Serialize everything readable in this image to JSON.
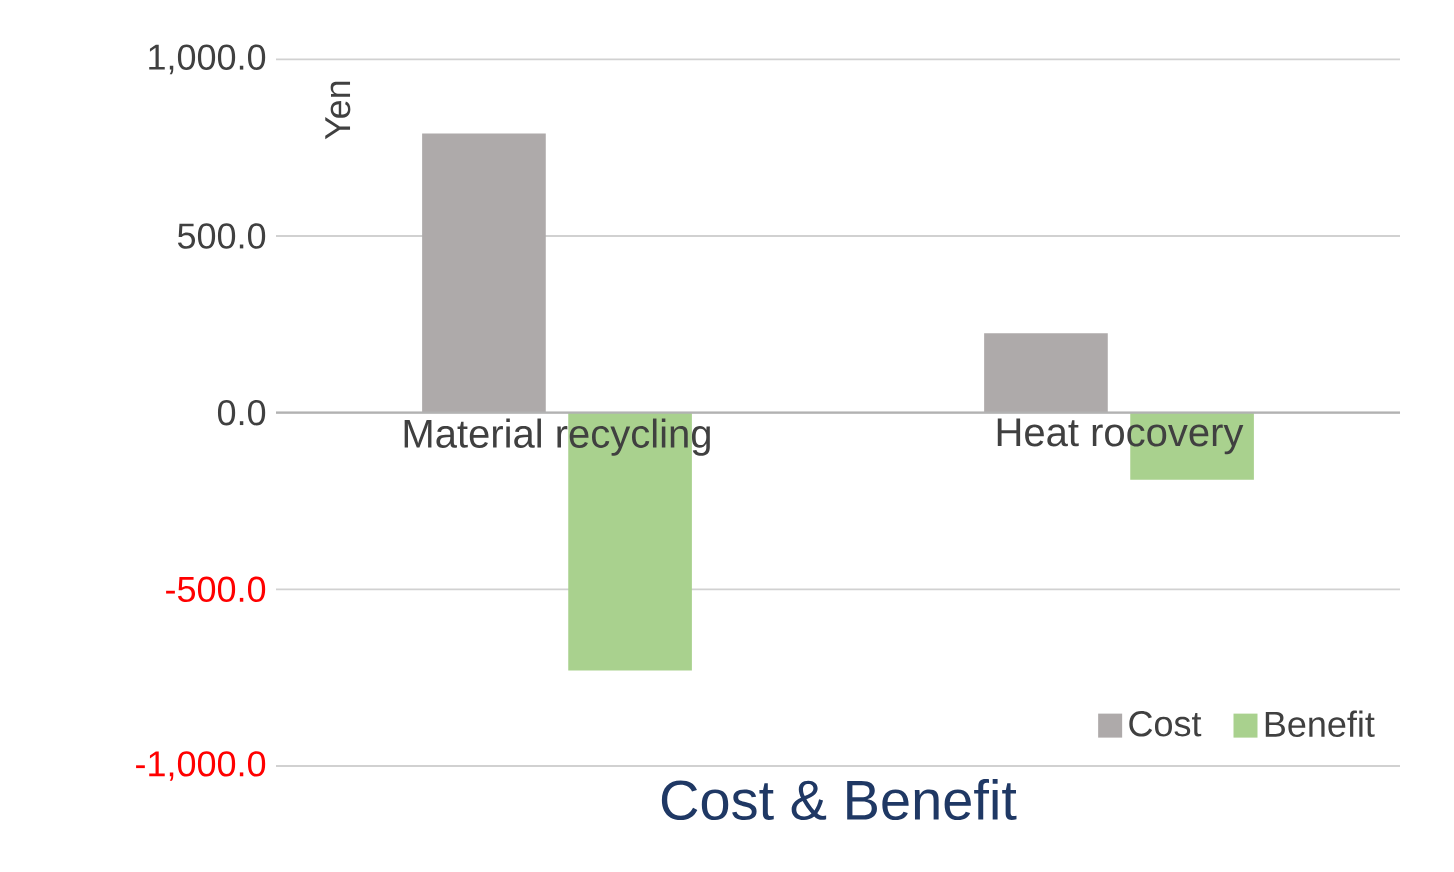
{
  "chart_data": {
    "type": "bar",
    "title": "Cost & Benefit",
    "ylabel": "Yen",
    "categories": [
      "Material recycling",
      "Heat rocovery"
    ],
    "series": [
      {
        "name": "Cost",
        "color": "#aeaaaa",
        "values": [
          790,
          225
        ]
      },
      {
        "name": "Benefit",
        "color": "#a9d18e",
        "values": [
          -730,
          -190
        ]
      }
    ],
    "ylim": [
      -1000,
      1000
    ],
    "yticks": [
      {
        "value": -1000,
        "label": "-1,000.0"
      },
      {
        "value": -500,
        "label": "-500.0"
      },
      {
        "value": 0,
        "label": "0.0"
      },
      {
        "value": 500,
        "label": "500.0"
      },
      {
        "value": 1000,
        "label": "1,000.0"
      }
    ],
    "grid": "y",
    "legend": "bottom right"
  }
}
